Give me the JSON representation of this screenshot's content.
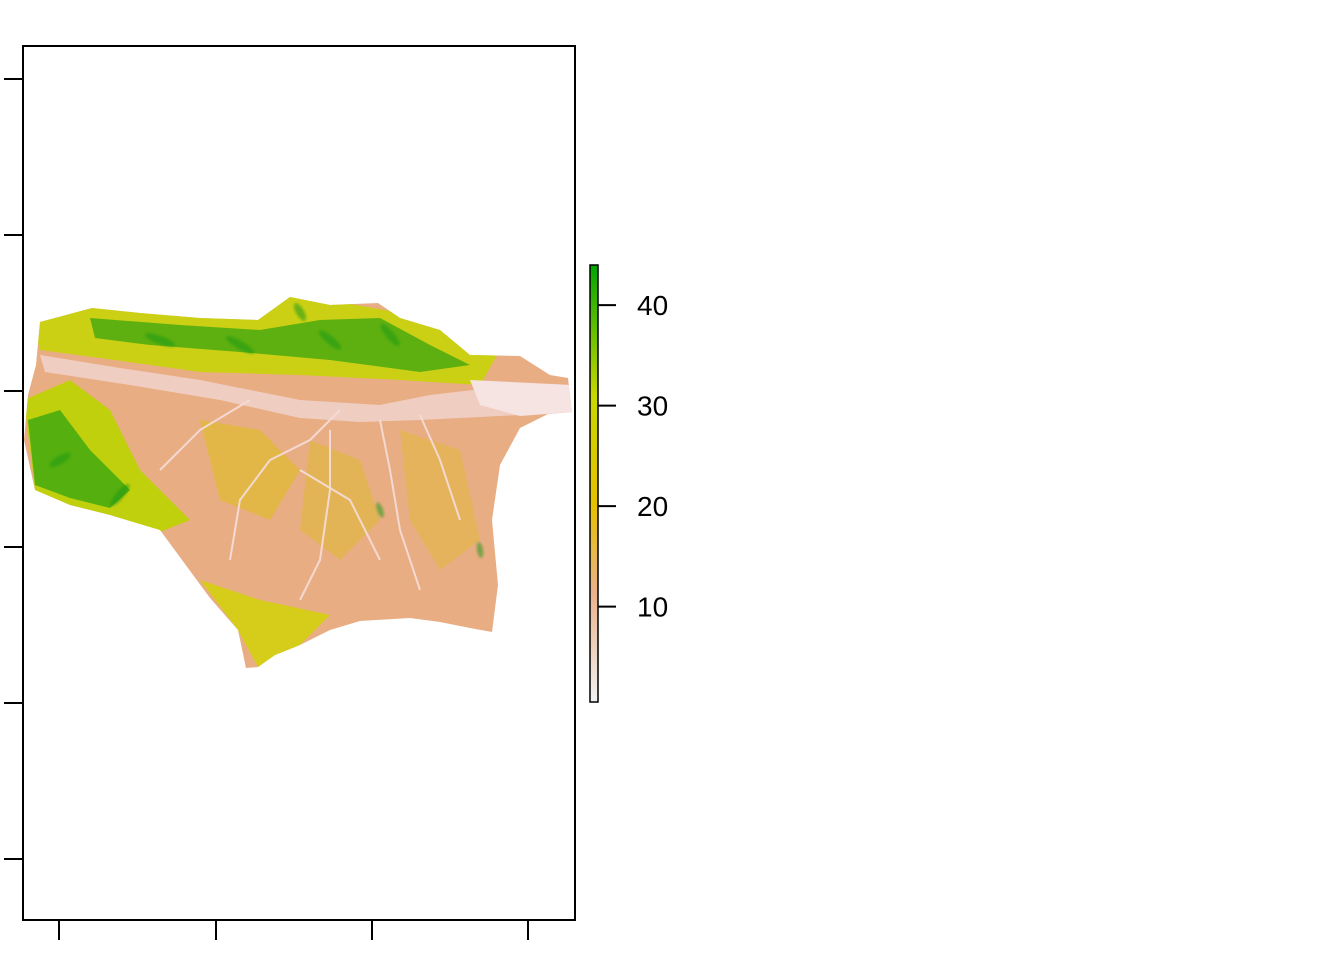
{
  "chart_data": {
    "type": "heatmap",
    "title": "",
    "xlabel": "",
    "ylabel": "",
    "x_tick_labels": [
      "",
      "",
      "",
      ""
    ],
    "y_tick_labels": [
      "",
      "",
      "",
      "",
      "",
      ""
    ],
    "legend": {
      "placement": "right",
      "value_range": [
        0.5,
        44
      ],
      "ticks": [
        10,
        20,
        30,
        40
      ],
      "tick_labels": [
        "10",
        "20",
        "30",
        "40"
      ],
      "colors": [
        "#f2f2f2",
        "#eab28a",
        "#e6c000",
        "#c8d800",
        "#00a600"
      ]
    },
    "raster": {
      "description_colors": {
        "low_valleys": "#f1d0c8",
        "mid": "#e9ad84",
        "high": "#d6d400",
        "peak": "#1f9a12"
      }
    }
  }
}
